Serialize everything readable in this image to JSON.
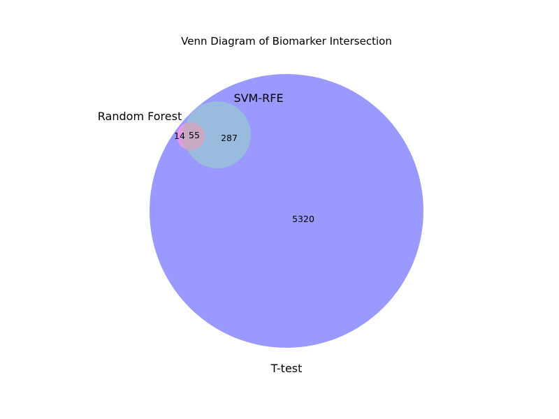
{
  "title": "Venn Diagram of Biomarker Intersection",
  "sets": [
    {
      "key": "ttest",
      "name": "T-test",
      "color": "#9999ff"
    },
    {
      "key": "svm",
      "name": "SVM-RFE",
      "color": "#99bbdd"
    },
    {
      "key": "rf",
      "name": "Random Forest",
      "color": "#e49ae8"
    }
  ],
  "regions": [
    {
      "key": "ttest_only",
      "sets": [
        "T-test"
      ],
      "value": "5320"
    },
    {
      "key": "ttest_svm",
      "sets": [
        "T-test",
        "SVM-RFE"
      ],
      "value": "287"
    },
    {
      "key": "rf_ttest",
      "sets": [
        "Random Forest",
        "T-test"
      ],
      "value": "14"
    },
    {
      "key": "all_three",
      "sets": [
        "T-test",
        "SVM-RFE",
        "Random Forest"
      ],
      "value": "55"
    }
  ],
  "overlap_color": "#c8a9c4"
}
